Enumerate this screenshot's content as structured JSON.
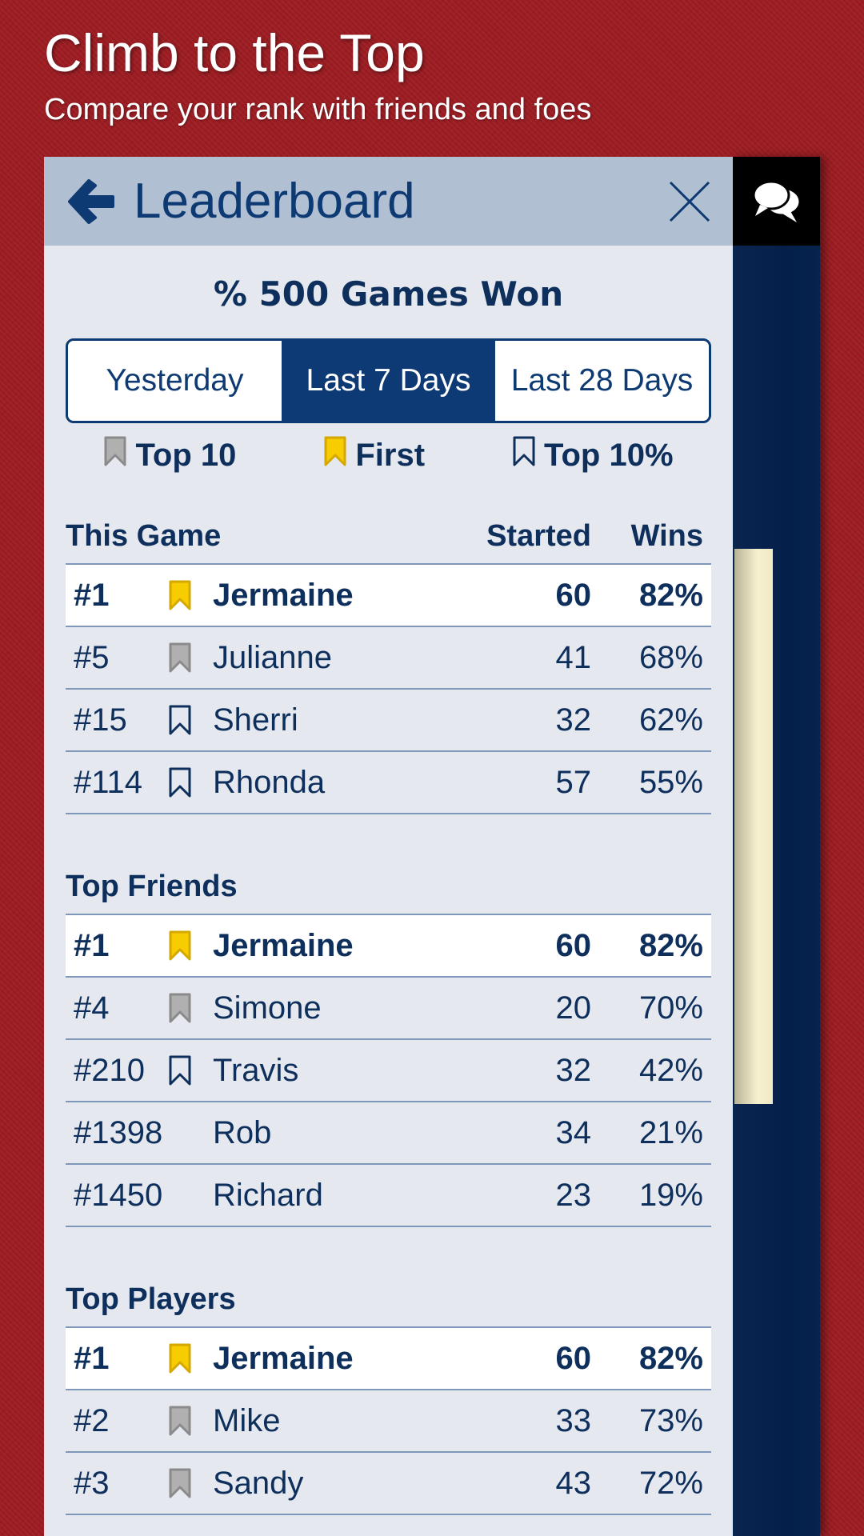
{
  "hero": {
    "title": "Climb to the Top",
    "subtitle": "Compare your rank with friends and foes"
  },
  "header": {
    "title": "Leaderboard"
  },
  "metric": "% 500 Games Won",
  "tabs": [
    {
      "label": "Yesterday",
      "selected": false
    },
    {
      "label": "Last 7 Days",
      "selected": true
    },
    {
      "label": "Last 28 Days",
      "selected": false
    }
  ],
  "badges": [
    {
      "label": "Top 10",
      "icon": "silver"
    },
    {
      "label": "First",
      "icon": "gold"
    },
    {
      "label": "Top 10%",
      "icon": "outline"
    }
  ],
  "colors": {
    "gold": "#f7cc00",
    "silver": "#a8a8a8",
    "navy": "#0e3a73"
  },
  "sections": [
    {
      "title": "This Game",
      "col_started": "Started",
      "col_wins": "Wins",
      "rows": [
        {
          "rank": "#1",
          "icon": "gold",
          "name": "Jermaine",
          "started": "60",
          "wins": "82%",
          "me": true
        },
        {
          "rank": "#5",
          "icon": "silver",
          "name": "Julianne",
          "started": "41",
          "wins": "68%"
        },
        {
          "rank": "#15",
          "icon": "outline",
          "name": "Sherri",
          "started": "32",
          "wins": "62%"
        },
        {
          "rank": "#114",
          "icon": "outline",
          "name": "Rhonda",
          "started": "57",
          "wins": "55%"
        }
      ]
    },
    {
      "title": "Top Friends",
      "rows": [
        {
          "rank": "#1",
          "icon": "gold",
          "name": "Jermaine",
          "started": "60",
          "wins": "82%",
          "me": true
        },
        {
          "rank": "#4",
          "icon": "silver",
          "name": "Simone",
          "started": "20",
          "wins": "70%"
        },
        {
          "rank": "#210",
          "icon": "outline",
          "name": "Travis",
          "started": "32",
          "wins": "42%"
        },
        {
          "rank": "#1398",
          "icon": "none",
          "name": "Rob",
          "started": "34",
          "wins": "21%"
        },
        {
          "rank": "#1450",
          "icon": "none",
          "name": "Richard",
          "started": "23",
          "wins": "19%"
        }
      ]
    },
    {
      "title": "Top Players",
      "rows": [
        {
          "rank": "#1",
          "icon": "gold",
          "name": "Jermaine",
          "started": "60",
          "wins": "82%",
          "me": true
        },
        {
          "rank": "#2",
          "icon": "silver",
          "name": "Mike",
          "started": "33",
          "wins": "73%"
        },
        {
          "rank": "#3",
          "icon": "silver",
          "name": "Sandy",
          "started": "43",
          "wins": "72%"
        }
      ]
    }
  ]
}
